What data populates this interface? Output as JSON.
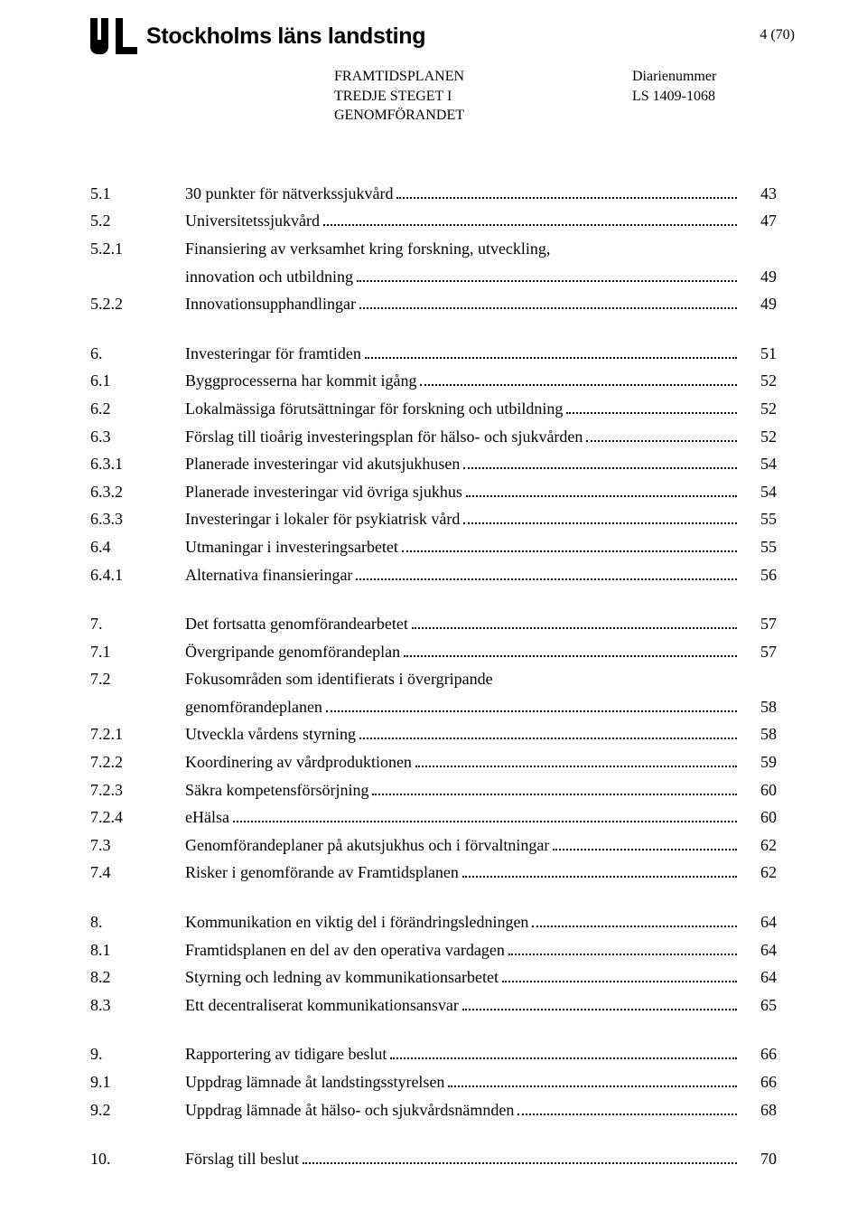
{
  "header": {
    "org_name": "Stockholms läns landsting",
    "page_number_label": "4 (70)"
  },
  "meta": {
    "doc_title_line1": "FRAMTIDSPLANEN",
    "doc_title_line2": "TREDJE STEGET I",
    "doc_title_line3": "GENOMFÖRANDET",
    "diarienummer_label": "Diarienummer",
    "diarienummer_value": "LS 1409-1068"
  },
  "colors": {
    "text": "#000000",
    "background": "#ffffff",
    "logo": "#000000"
  },
  "toc": {
    "groups": [
      {
        "items": [
          {
            "num": "5.1",
            "title": "30 punkter för nätverkssjukvård",
            "page": "43"
          },
          {
            "num": "5.2",
            "title": "Universitetssjukvård",
            "page": "47"
          },
          {
            "num": "5.2.1",
            "title": "Finansiering av verksamhet kring forskning, utveckling,",
            "title2": "innovation och utbildning",
            "page": "49"
          },
          {
            "num": "5.2.2",
            "title": "Innovationsupphandlingar",
            "page": "49"
          }
        ]
      },
      {
        "items": [
          {
            "num": "6.",
            "title": "Investeringar för framtiden",
            "page": "51"
          },
          {
            "num": "6.1",
            "title": "Byggprocesserna har kommit igång",
            "page": "52"
          },
          {
            "num": "6.2",
            "title": "Lokalmässiga förutsättningar för forskning och utbildning",
            "page": "52"
          },
          {
            "num": "6.3",
            "title": "Förslag till tioårig investeringsplan för hälso- och sjukvården",
            "page": "52"
          },
          {
            "num": "6.3.1",
            "title": "Planerade investeringar vid akutsjukhusen",
            "page": "54"
          },
          {
            "num": "6.3.2",
            "title": "Planerade investeringar vid övriga sjukhus",
            "page": "54"
          },
          {
            "num": "6.3.3",
            "title": "Investeringar i lokaler för psykiatrisk vård",
            "page": "55"
          },
          {
            "num": "6.4",
            "title": "Utmaningar i investeringsarbetet",
            "page": "55"
          },
          {
            "num": "6.4.1",
            "title": "Alternativa finansieringar",
            "page": "56"
          }
        ]
      },
      {
        "items": [
          {
            "num": "7.",
            "title": "Det fortsatta genomförandearbetet",
            "page": "57"
          },
          {
            "num": "7.1",
            "title": "Övergripande genomförandeplan",
            "page": "57"
          },
          {
            "num": "7.2",
            "title": "Fokusområden som identifierats i övergripande",
            "title2": "genomförandeplanen",
            "page": "58"
          },
          {
            "num": "7.2.1",
            "title": "Utveckla vårdens styrning",
            "page": "58"
          },
          {
            "num": "7.2.2",
            "title": "Koordinering av vårdproduktionen",
            "page": "59"
          },
          {
            "num": "7.2.3",
            "title": "Säkra kompetensförsörjning",
            "page": "60"
          },
          {
            "num": "7.2.4",
            "title": "eHälsa",
            "page": "60"
          },
          {
            "num": "7.3",
            "title": "Genomförandeplaner på akutsjukhus och i förvaltningar",
            "page": "62"
          },
          {
            "num": "7.4",
            "title": "Risker i genomförande av Framtidsplanen",
            "page": "62"
          }
        ]
      },
      {
        "items": [
          {
            "num": "8.",
            "title": "Kommunikation en viktig del i förändringsledningen",
            "page": "64"
          },
          {
            "num": "8.1",
            "title": "Framtidsplanen en del av den operativa vardagen",
            "page": "64"
          },
          {
            "num": "8.2",
            "title": "Styrning och ledning av kommunikationsarbetet",
            "page": "64"
          },
          {
            "num": "8.3",
            "title": "Ett decentraliserat kommunikationsansvar",
            "page": "65"
          }
        ]
      },
      {
        "items": [
          {
            "num": "9.",
            "title": "Rapportering av tidigare beslut",
            "page": "66"
          },
          {
            "num": "9.1",
            "title": "Uppdrag lämnade åt landstingsstyrelsen",
            "page": "66"
          },
          {
            "num": "9.2",
            "title": "Uppdrag lämnade åt hälso- och sjukvårdsnämnden",
            "page": "68"
          }
        ]
      },
      {
        "items": [
          {
            "num": "10.",
            "title": "Förslag till beslut",
            "page": "70"
          }
        ]
      }
    ]
  }
}
